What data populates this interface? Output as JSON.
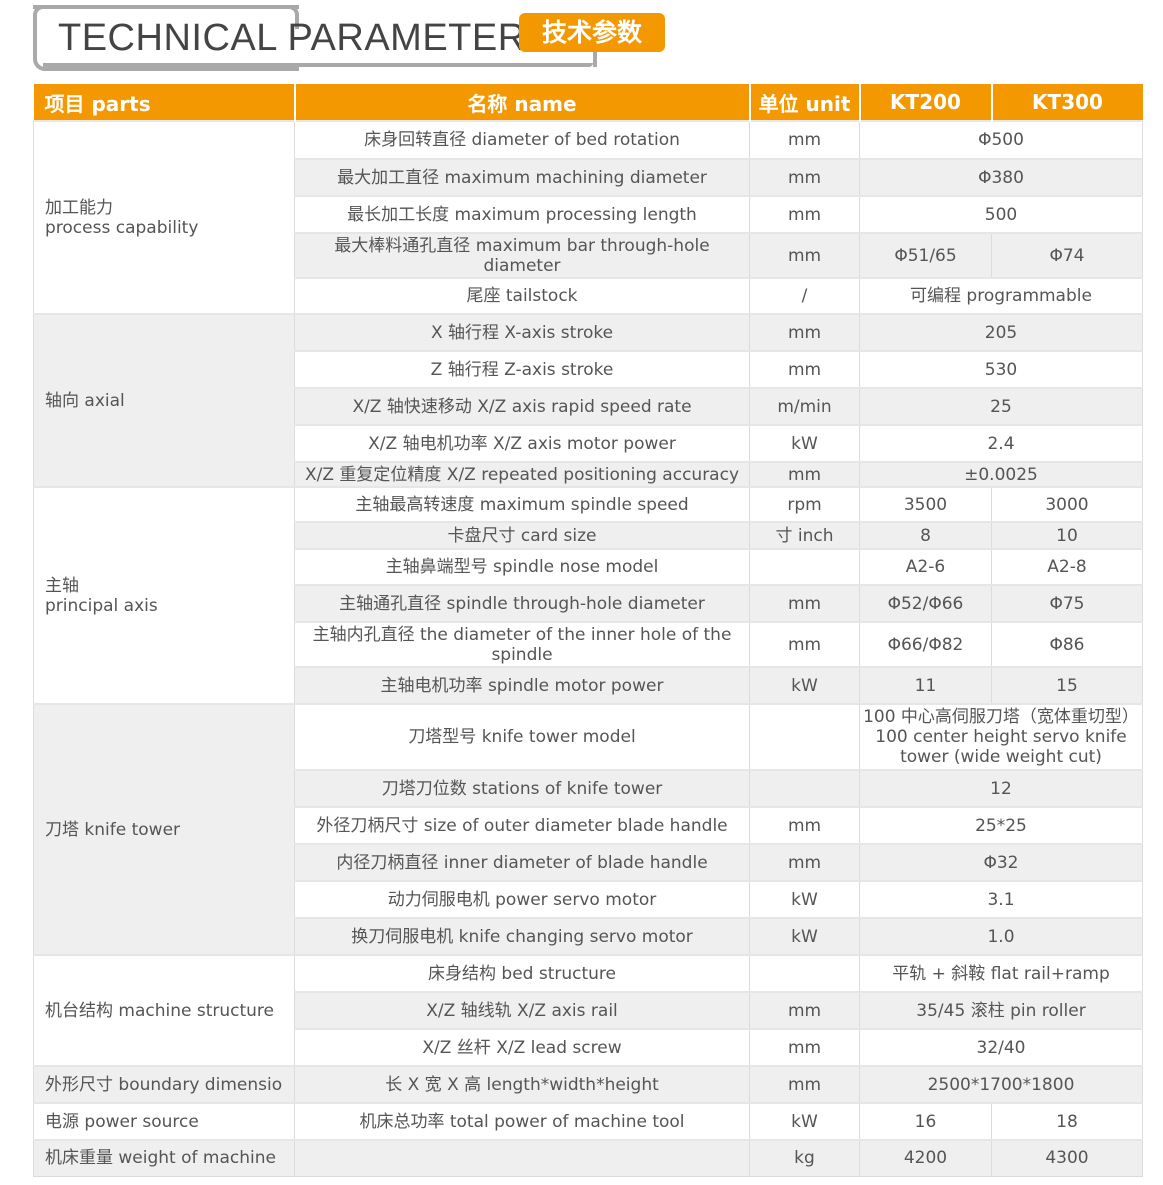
{
  "header": {
    "title": "TECHNICAL PARAMETERS",
    "badge": "技术参数"
  },
  "table": {
    "columns": [
      "项目 parts",
      "名称 name",
      "单位 unit",
      "KT200",
      "KT300"
    ],
    "groups": [
      {
        "label": "加工能力\nprocess capability",
        "rows": [
          {
            "name": "床身回转直径 diameter of bed rotation",
            "unit": "mm",
            "values": [
              "Φ500"
            ]
          },
          {
            "name": "最大加工直径 maximum machining diameter",
            "unit": "mm",
            "values": [
              "Φ380"
            ]
          },
          {
            "name": "最长加工长度 maximum processing length",
            "unit": "mm",
            "values": [
              "500"
            ]
          },
          {
            "name": "最大棒料通孔直径 maximum bar through-hole diameter",
            "unit": "mm",
            "values": [
              "Φ51/65",
              "Φ74"
            ]
          },
          {
            "name": "尾座 tailstock",
            "unit": "/",
            "values": [
              "可编程 programmable"
            ]
          }
        ]
      },
      {
        "label": "轴向 axial",
        "rows": [
          {
            "name": "X 轴行程 X-axis stroke",
            "unit": "mm",
            "values": [
              "205"
            ]
          },
          {
            "name": "Z 轴行程 Z-axis stroke",
            "unit": "mm",
            "values": [
              "530"
            ]
          },
          {
            "name": "X/Z 轴快速移动 X/Z axis rapid speed rate",
            "unit": "m/min",
            "values": [
              "25"
            ]
          },
          {
            "name": "X/Z 轴电机功率 X/Z  axis motor power",
            "unit": "kW",
            "values": [
              "2.4"
            ]
          },
          {
            "name": "X/Z 重复定位精度 X/Z repeated positioning accuracy",
            "unit": "mm",
            "values": [
              "±0.0025"
            ]
          }
        ]
      },
      {
        "label": "主轴\nprincipal axis",
        "rows": [
          {
            "name": "主轴最高转速度 maximum spindle speed",
            "unit": "rpm",
            "values": [
              "3500",
              "3000"
            ]
          },
          {
            "name": "卡盘尺寸 card size",
            "unit": "寸 inch",
            "values": [
              "8",
              "10"
            ]
          },
          {
            "name": "主轴鼻端型号 spindle nose model",
            "unit": "",
            "values": [
              "A2-6",
              "A2-8"
            ]
          },
          {
            "name": "主轴通孔直径 spindle through-hole diameter",
            "unit": "mm",
            "values": [
              "Φ52/Φ66",
              "Φ75"
            ]
          },
          {
            "name": "主轴内孔直径 the diameter of the inner hole of the spindle",
            "unit": "mm",
            "values": [
              "Φ66/Φ82",
              "Φ86"
            ]
          },
          {
            "name": "主轴电机功率 spindle motor power",
            "unit": "kW",
            "values": [
              "11",
              "15"
            ]
          }
        ]
      },
      {
        "label": "刀塔 knife tower",
        "rows": [
          {
            "name": "刀塔型号 knife tower model",
            "unit": "",
            "values": [
              "100 中心高伺服刀塔（宽体重切型）100 center height servo knife tower (wide weight cut)"
            ]
          },
          {
            "name": "刀塔刀位数 stations of knife tower",
            "unit": "",
            "values": [
              "12"
            ]
          },
          {
            "name": "外径刀柄尺寸 size of outer diameter blade handle",
            "unit": "mm",
            "values": [
              "25*25"
            ]
          },
          {
            "name": "内径刀柄直径 inner diameter of blade handle",
            "unit": "mm",
            "values": [
              "Φ32"
            ]
          },
          {
            "name": "动力伺服电机 power servo motor",
            "unit": "kW",
            "values": [
              "3.1"
            ]
          },
          {
            "name": "换刀伺服电机 knife changing servo motor",
            "unit": "kW",
            "values": [
              "1.0"
            ]
          }
        ]
      },
      {
        "label": "机台结构 machine structure",
        "rows": [
          {
            "name": "床身结构 bed structure",
            "unit": "",
            "values": [
              "平轨 + 斜鞍 flat rail+ramp"
            ]
          },
          {
            "name": "X/Z 轴线轨 X/Z axis rail",
            "unit": "mm",
            "values": [
              "35/45 滚柱 pin roller"
            ]
          },
          {
            "name": "X/Z 丝杆 X/Z lead screw",
            "unit": "mm",
            "values": [
              "32/40"
            ]
          }
        ]
      },
      {
        "label": "外形尺寸 boundary dimensio",
        "rows": [
          {
            "name": "长 X 宽 X 高 length*width*height",
            "unit": "mm",
            "values": [
              "2500*1700*1800"
            ]
          }
        ]
      },
      {
        "label": "电源 power source",
        "rows": [
          {
            "name": "机床总功率 total power of machine tool",
            "unit": "kW",
            "values": [
              "16",
              "18"
            ]
          }
        ]
      },
      {
        "label": "机床重量 weight of machine",
        "rows": [
          {
            "name": "",
            "unit": "kg",
            "values": [
              "4200",
              "4300"
            ]
          }
        ]
      }
    ]
  }
}
